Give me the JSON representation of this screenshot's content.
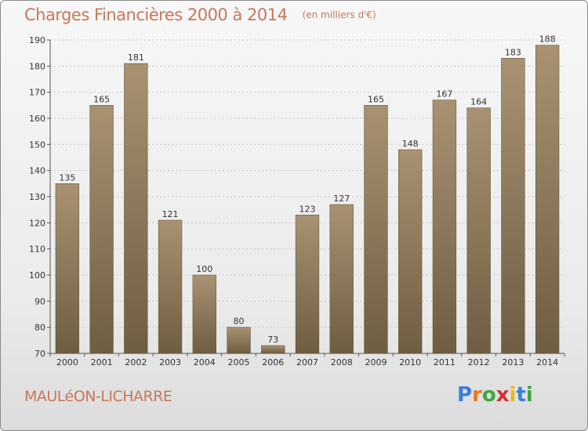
{
  "title": "Charges Financières 2000 à 2014",
  "unit": "(en milliers d'€)",
  "commune": "MAULéON-LICHARRE",
  "logo": {
    "letters": [
      "P",
      "r",
      "o",
      "x",
      "i",
      "t",
      "i"
    ],
    "colors": [
      "#3a7fd6",
      "#e87a1e",
      "#3aa83a",
      "#d62e2e",
      "#e8b81e",
      "#3a7fd6",
      "#3aa83a"
    ]
  },
  "colors": {
    "bar_top": "#a89272",
    "bar_bottom": "#6f5d42",
    "title": "#c8785a"
  },
  "chart_data": {
    "type": "bar",
    "categories": [
      "2000",
      "2001",
      "2002",
      "2003",
      "2004",
      "2005",
      "2006",
      "2007",
      "2008",
      "2009",
      "2010",
      "2011",
      "2012",
      "2013",
      "2014"
    ],
    "values": [
      135,
      165,
      181,
      121,
      100,
      80,
      73,
      123,
      127,
      165,
      148,
      167,
      164,
      183,
      188
    ],
    "ylim": [
      70,
      190
    ],
    "yticks": [
      70,
      80,
      90,
      100,
      110,
      120,
      130,
      140,
      150,
      160,
      170,
      180,
      190
    ],
    "grid": true,
    "xlabel": "",
    "ylabel": ""
  }
}
